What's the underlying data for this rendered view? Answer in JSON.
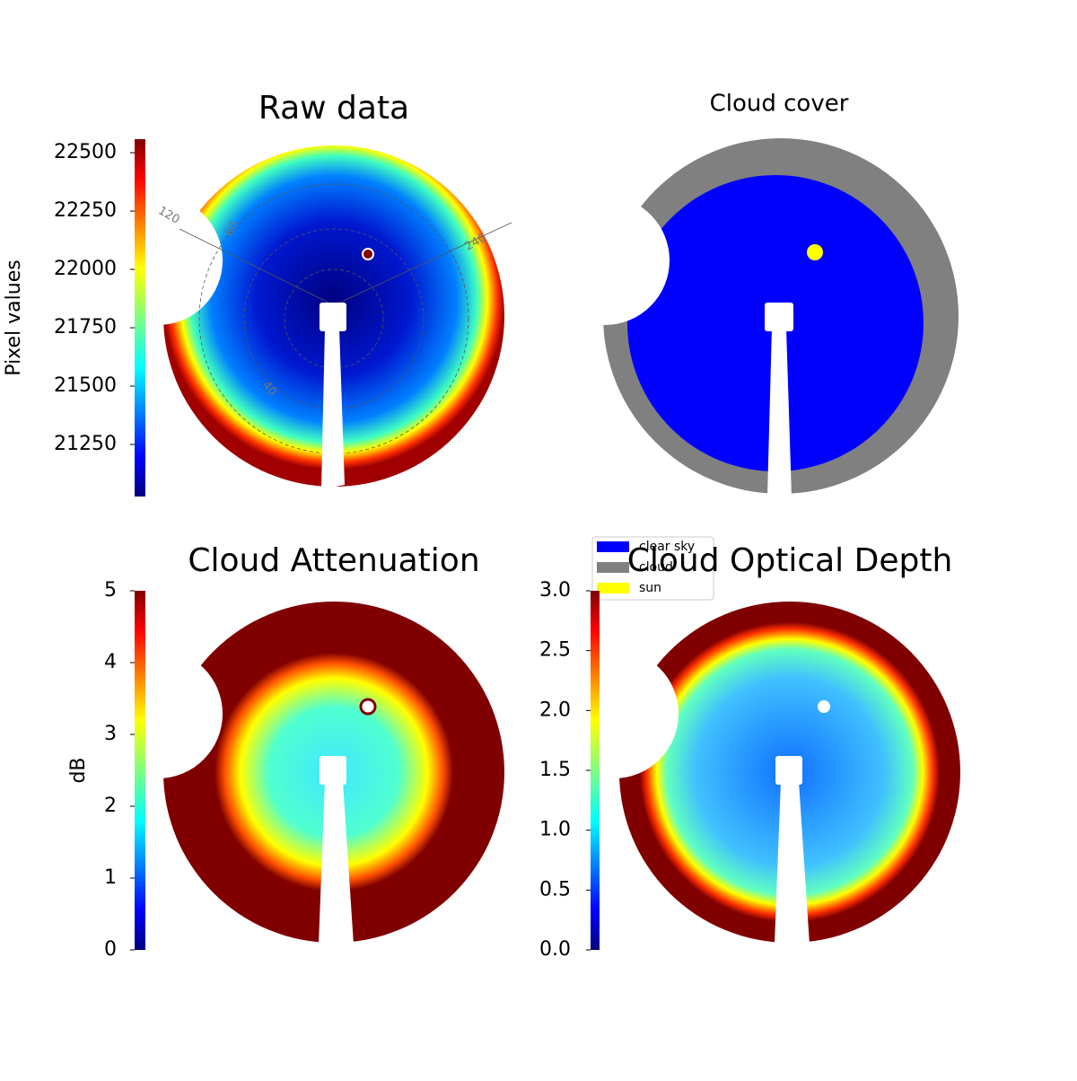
{
  "chart_data": [
    {
      "type": "image",
      "title": "Raw data",
      "colorbar_label": "Pixel values",
      "clim": [
        21027,
        22558
      ],
      "cticks": [
        21250,
        21500,
        21750,
        22000,
        22250,
        22500
      ],
      "colormap": "jet",
      "annotations": [
        "120",
        "60",
        "240",
        "40"
      ]
    },
    {
      "type": "image",
      "title": "Cloud cover",
      "legend": [
        {
          "name": "clear sky",
          "color": "#0000ff"
        },
        {
          "name": "cloud",
          "color": "#808080"
        },
        {
          "name": "sun",
          "color": "#ffff00"
        }
      ]
    },
    {
      "type": "image",
      "title": "Cloud Attenuation",
      "colorbar_label": "dB",
      "clim": [
        0,
        5
      ],
      "cticks": [
        0,
        1,
        2,
        3,
        4,
        5
      ],
      "colormap": "jet"
    },
    {
      "type": "image",
      "title": "Cloud Optical Depth",
      "clim": [
        0,
        3
      ],
      "cticks": [
        {
          "value": 0,
          "label": "0.0"
        },
        {
          "value": 0.5,
          "label": "0.5"
        },
        {
          "value": 1,
          "label": "1.0"
        },
        {
          "value": 1.5,
          "label": "1.5"
        },
        {
          "value": 2,
          "label": "2.0"
        },
        {
          "value": 2.5,
          "label": "2.5"
        },
        {
          "value": 3,
          "label": "3.0"
        }
      ],
      "colormap": "jet"
    }
  ]
}
